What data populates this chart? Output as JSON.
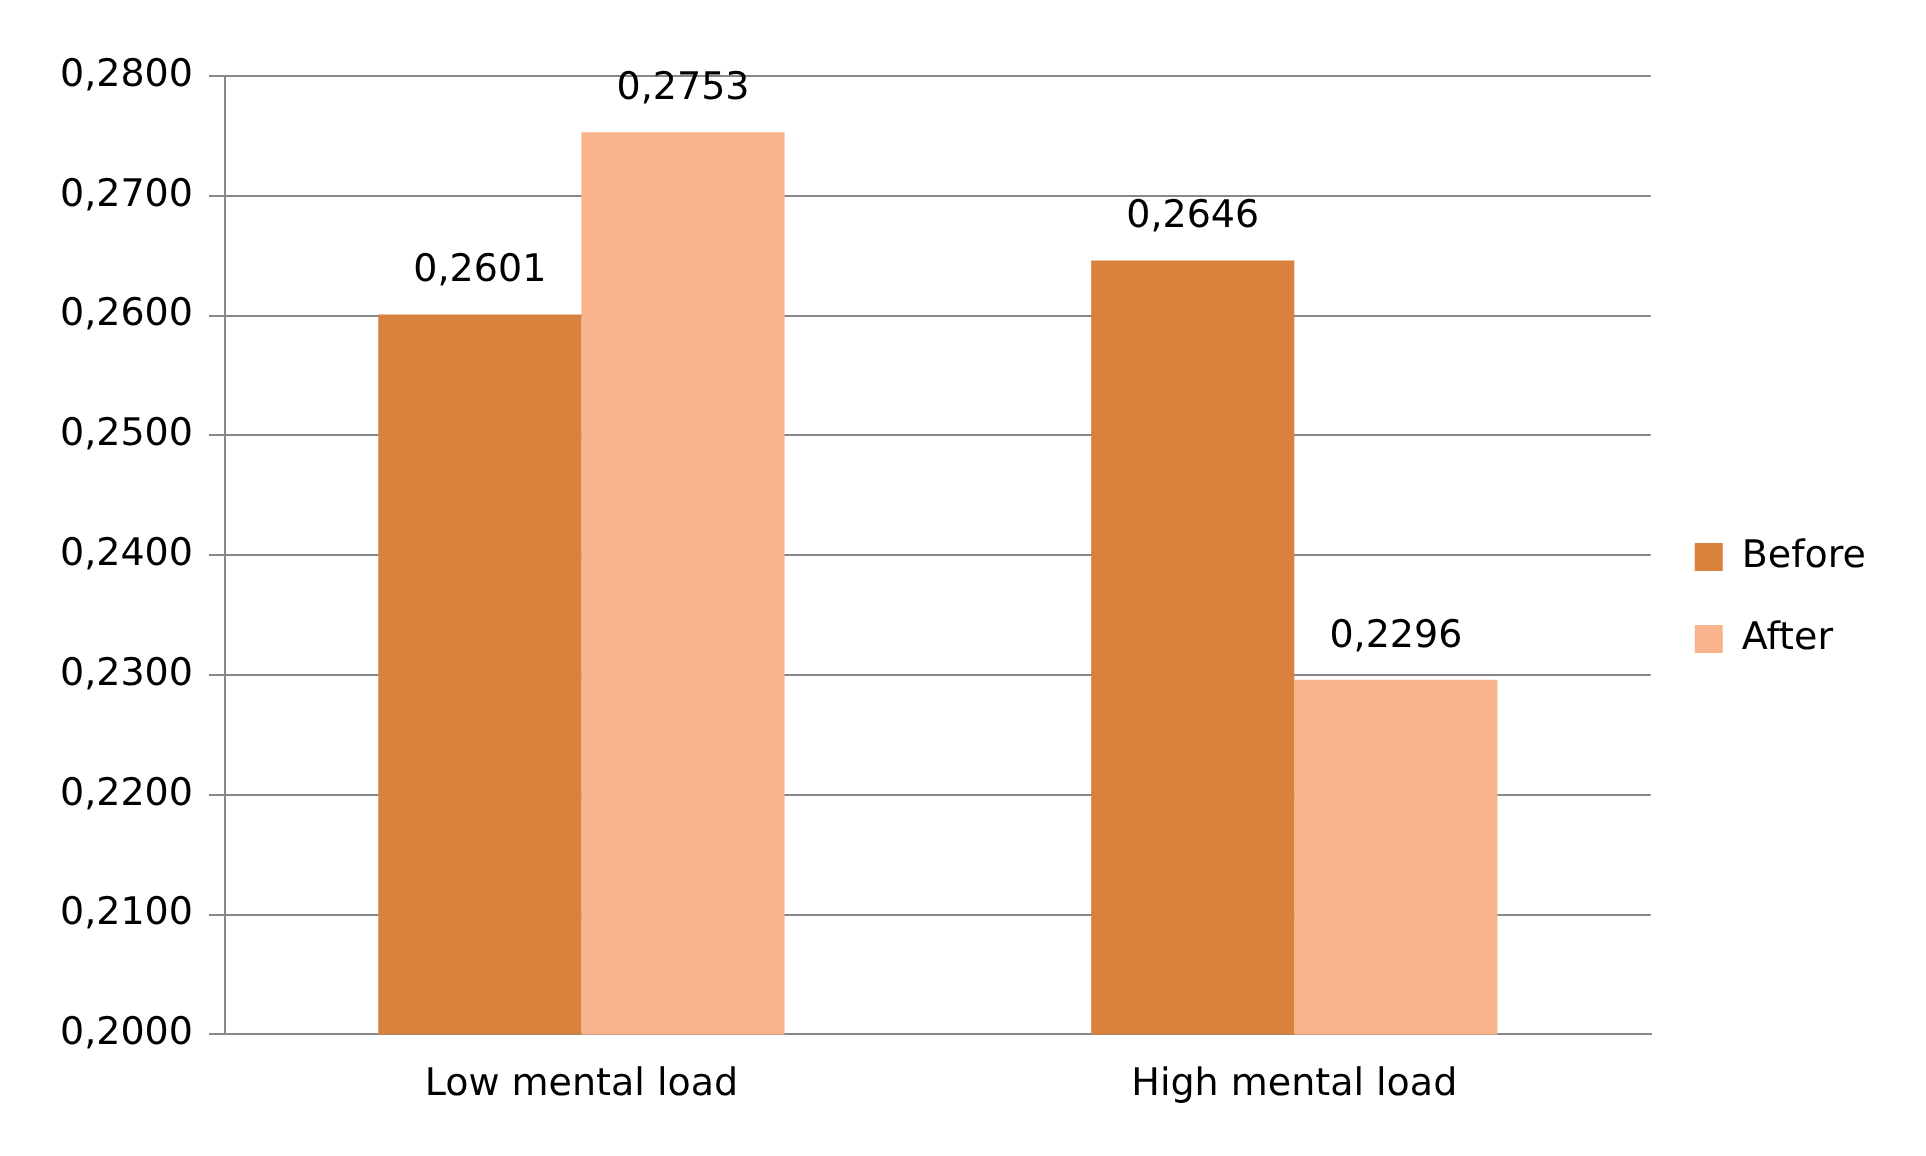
{
  "chart_data": {
    "type": "bar",
    "categories": [
      "Low mental load",
      "High mental load"
    ],
    "series": [
      {
        "name": "Before",
        "color": "#d9823d",
        "values": [
          0.2601,
          0.2646
        ],
        "value_labels": [
          "0,2601",
          "0,2646"
        ]
      },
      {
        "name": "After",
        "color": "#f9b48d",
        "values": [
          0.2753,
          0.2296
        ],
        "value_labels": [
          "0,2753",
          "0,2296"
        ]
      }
    ],
    "ylim": [
      0.2,
      0.28
    ],
    "yticks": [
      {
        "value": 0.2,
        "label": "0,2000"
      },
      {
        "value": 0.21,
        "label": "0,2100"
      },
      {
        "value": 0.22,
        "label": "0,2200"
      },
      {
        "value": 0.23,
        "label": "0,2300"
      },
      {
        "value": 0.24,
        "label": "0,2400"
      },
      {
        "value": 0.25,
        "label": "0,2500"
      },
      {
        "value": 0.26,
        "label": "0,2600"
      },
      {
        "value": 0.27,
        "label": "0,2700"
      },
      {
        "value": 0.28,
        "label": "0,2800"
      }
    ],
    "grid": "y",
    "legend": "right"
  }
}
